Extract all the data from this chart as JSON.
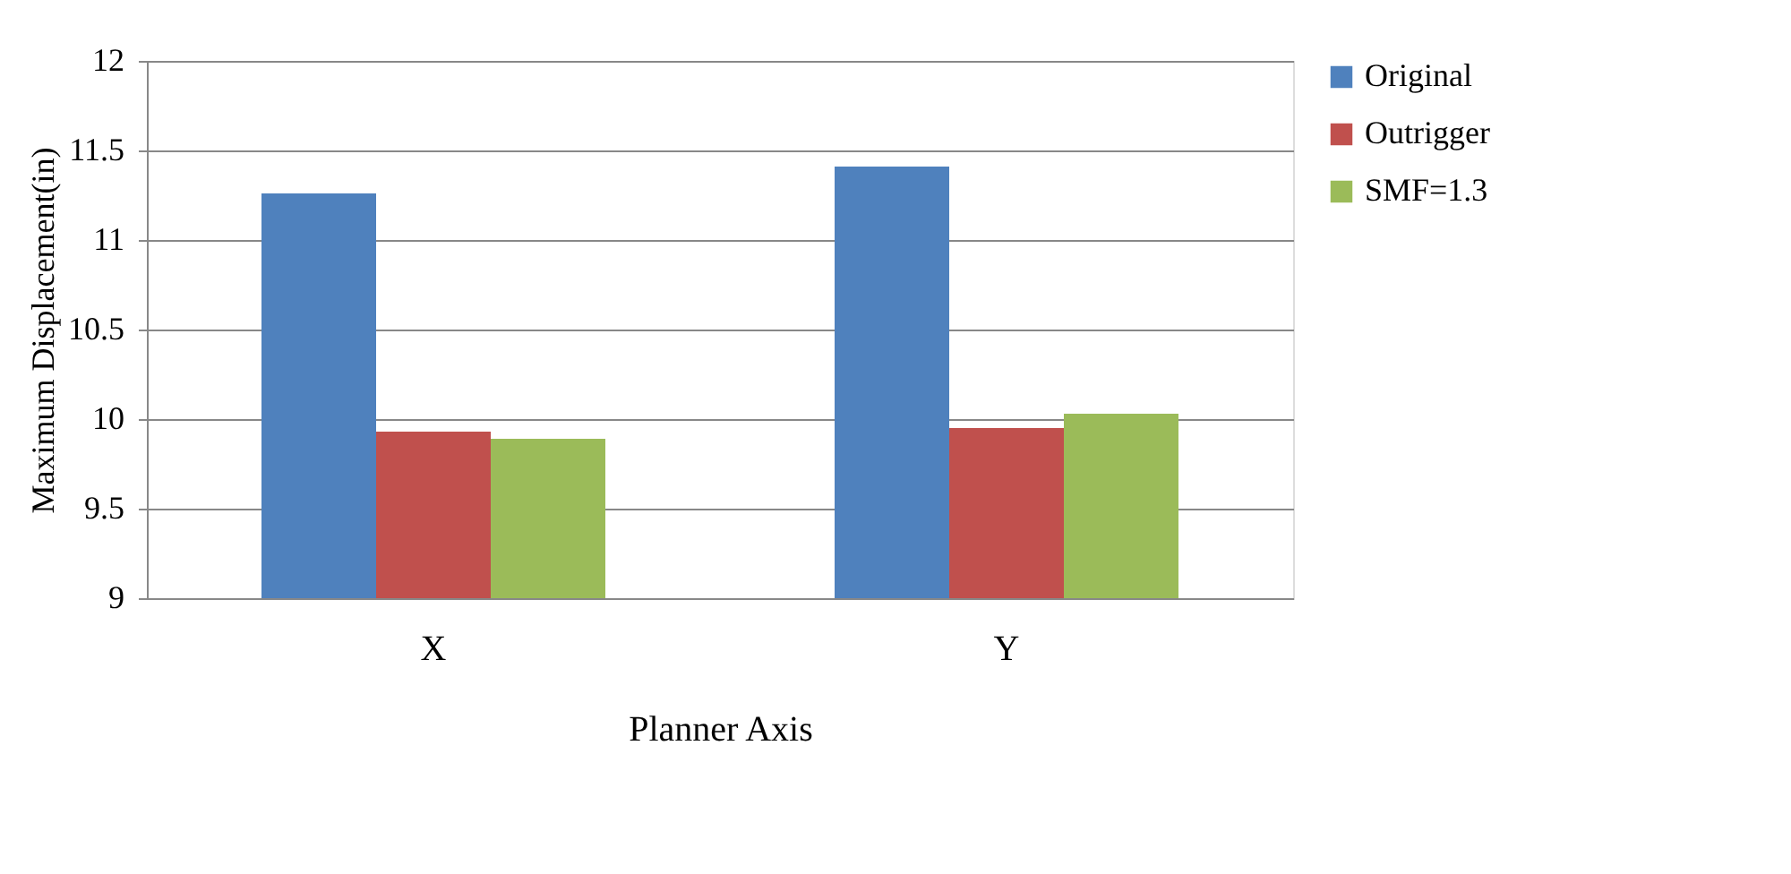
{
  "chart_data": {
    "type": "bar",
    "xlabel": "Planner Axis",
    "ylabel": "Maximum Displacement(in)",
    "categories": [
      "X",
      "Y"
    ],
    "series": [
      {
        "name": "Original",
        "color": "#4f81bd",
        "values": [
          11.26,
          11.41
        ]
      },
      {
        "name": "Outrigger",
        "color": "#c0504d",
        "values": [
          9.93,
          9.95
        ]
      },
      {
        "name": "SMF=1.3",
        "color": "#9bbb59",
        "values": [
          9.89,
          10.03
        ]
      }
    ],
    "ylim": [
      9,
      12
    ],
    "yticks": [
      9,
      9.5,
      10,
      10.5,
      11,
      11.5,
      12
    ],
    "grid": "y",
    "legend": "right"
  }
}
